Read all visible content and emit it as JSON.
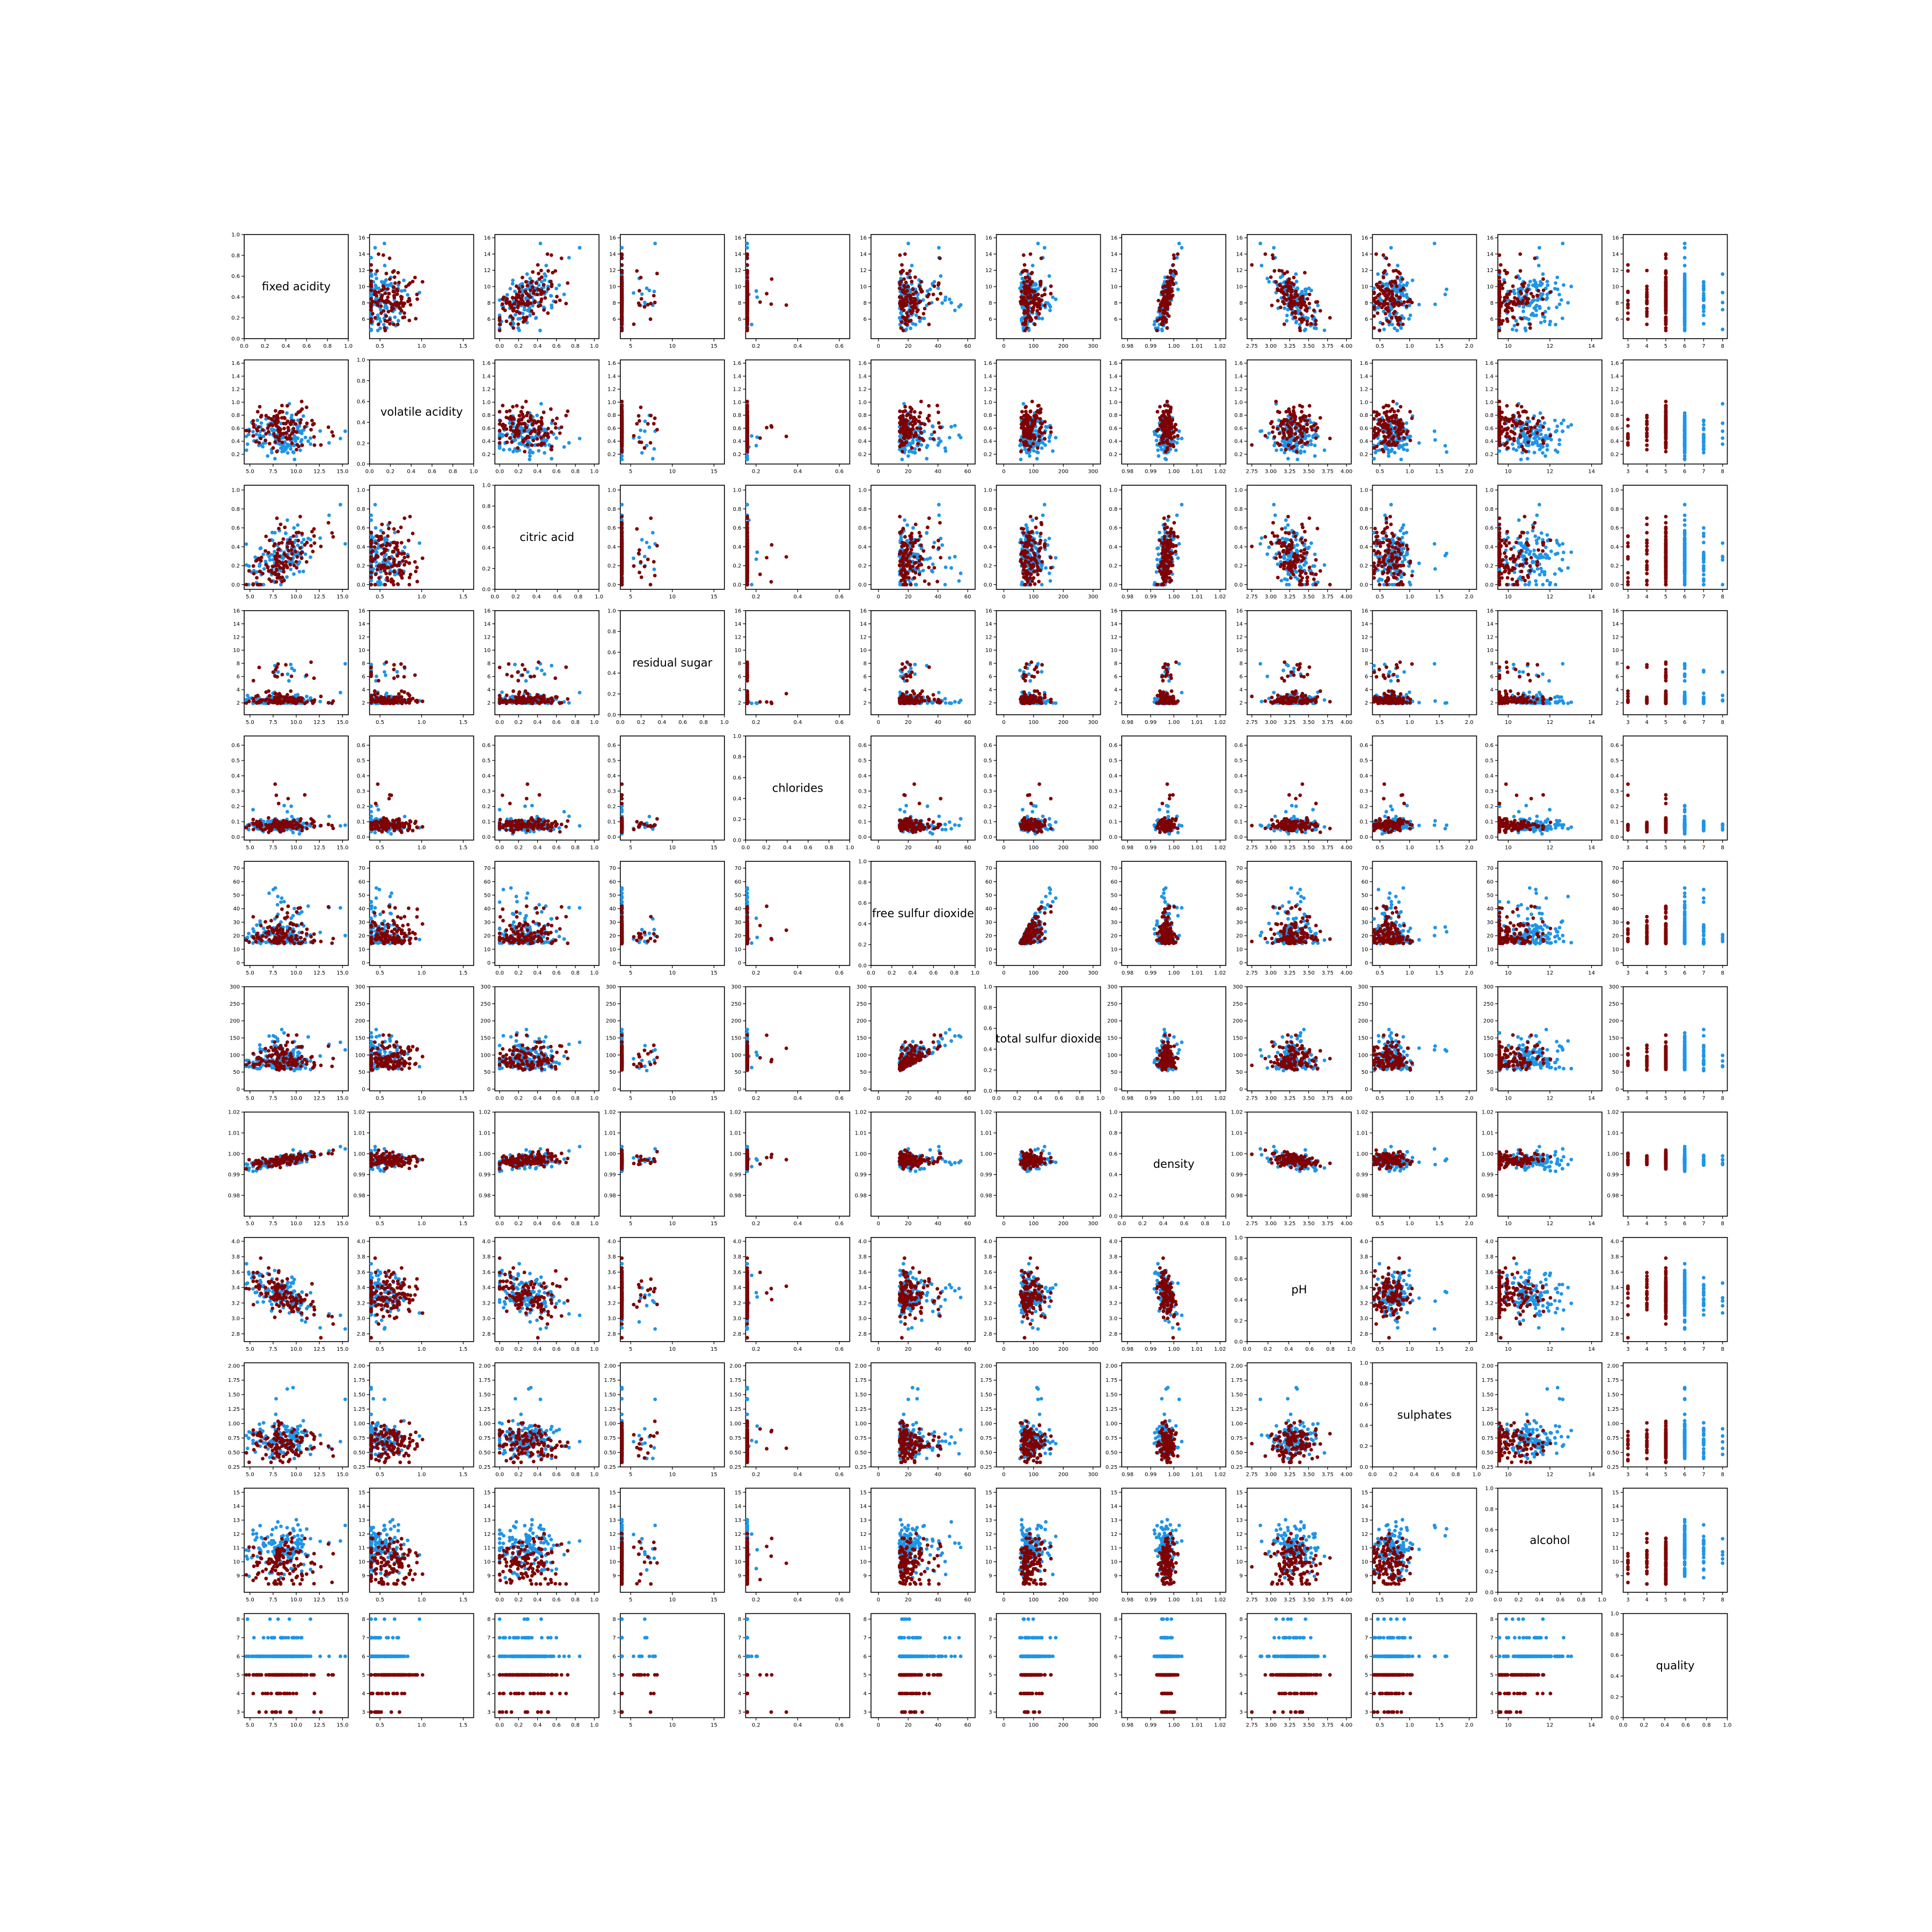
{
  "chart_data": {
    "type": "scatter",
    "layout": "scatter-matrix",
    "variables": [
      {
        "name": "fixed acidity",
        "ticks": [
          "5.0",
          "7.5",
          "10.0",
          "12.5",
          "15.0"
        ],
        "ylim": [
          3.6,
          16.4
        ],
        "yticks": [
          "6",
          "8",
          "10",
          "12",
          "14",
          "16"
        ]
      },
      {
        "name": "volatile acidity",
        "ticks": [
          "0.5",
          "1.0",
          "1.5"
        ],
        "ylim": [
          0.05,
          1.65
        ],
        "yticks": [
          "0.2",
          "0.4",
          "0.6",
          "0.8",
          "1.0",
          "1.2",
          "1.4",
          "1.6"
        ]
      },
      {
        "name": "citric acid",
        "ticks": [
          "0.0",
          "0.2",
          "0.4",
          "0.6",
          "0.8",
          "1.0"
        ],
        "ylim": [
          -0.05,
          1.05
        ],
        "yticks": [
          "0.0",
          "0.2",
          "0.4",
          "0.6",
          "0.8",
          "1.0"
        ]
      },
      {
        "name": "residual sugar",
        "ticks": [
          "5",
          "10",
          "15"
        ],
        "ylim": [
          0.2,
          16
        ],
        "yticks": [
          "2",
          "4",
          "6",
          "8",
          "10",
          "12",
          "14",
          "16"
        ]
      },
      {
        "name": "chlorides",
        "ticks": [
          "0.2",
          "0.4",
          "0.6"
        ],
        "ylim": [
          -0.02,
          0.66
        ],
        "yticks": [
          "0.0",
          "0.1",
          "0.2",
          "0.3",
          "0.4",
          "0.5",
          "0.6"
        ]
      },
      {
        "name": "free sulfur dioxide",
        "ticks": [
          "0",
          "20",
          "40",
          "60"
        ],
        "ylim": [
          -2,
          75
        ],
        "yticks": [
          "0",
          "10",
          "20",
          "30",
          "40",
          "50",
          "60",
          "70"
        ]
      },
      {
        "name": "total sulfur dioxide",
        "ticks": [
          "0",
          "100",
          "200",
          "300"
        ],
        "ylim": [
          -5,
          300
        ],
        "yticks": [
          "0",
          "50",
          "100",
          "150",
          "200",
          "250",
          "300"
        ]
      },
      {
        "name": "density",
        "ticks": [
          "0.98",
          "0.99",
          "1.00",
          "1.01",
          "1.02"
        ],
        "ylim": [
          0.97,
          1.02
        ],
        "yticks": [
          "0.98",
          "0.99",
          "1.00",
          "1.01",
          "1.02"
        ]
      },
      {
        "name": "pH",
        "ticks": [
          "2.75",
          "3.00",
          "3.25",
          "3.50",
          "3.75",
          "4.00"
        ],
        "ylim": [
          2.7,
          4.05
        ],
        "yticks": [
          "2.8",
          "3.0",
          "3.2",
          "3.4",
          "3.6",
          "3.8",
          "4.0"
        ]
      },
      {
        "name": "sulphates",
        "ticks": [
          "0.5",
          "1.0",
          "1.5",
          "2.0"
        ],
        "ylim": [
          0.25,
          2.05
        ],
        "yticks": [
          "0.25",
          "0.50",
          "0.75",
          "1.00",
          "1.25",
          "1.50",
          "1.75",
          "2.00"
        ]
      },
      {
        "name": "alcohol",
        "ticks": [
          "10",
          "12",
          "14"
        ],
        "ylim": [
          7.8,
          15.3
        ],
        "yticks": [
          "9",
          "10",
          "11",
          "12",
          "13",
          "14",
          "15"
        ]
      },
      {
        "name": "quality",
        "ticks": [
          "3",
          "4",
          "5",
          "6",
          "7",
          "8"
        ],
        "ylim": [
          2.7,
          8.3
        ],
        "yticks": [
          "3",
          "4",
          "5",
          "6",
          "7",
          "8"
        ]
      }
    ],
    "diagonal_axis_ticks": [
      "0.0",
      "0.2",
      "0.4",
      "0.6",
      "0.8",
      "1.0"
    ],
    "series": [
      {
        "color": "#1f95e6"
      },
      {
        "color": "#7f0000"
      }
    ]
  }
}
